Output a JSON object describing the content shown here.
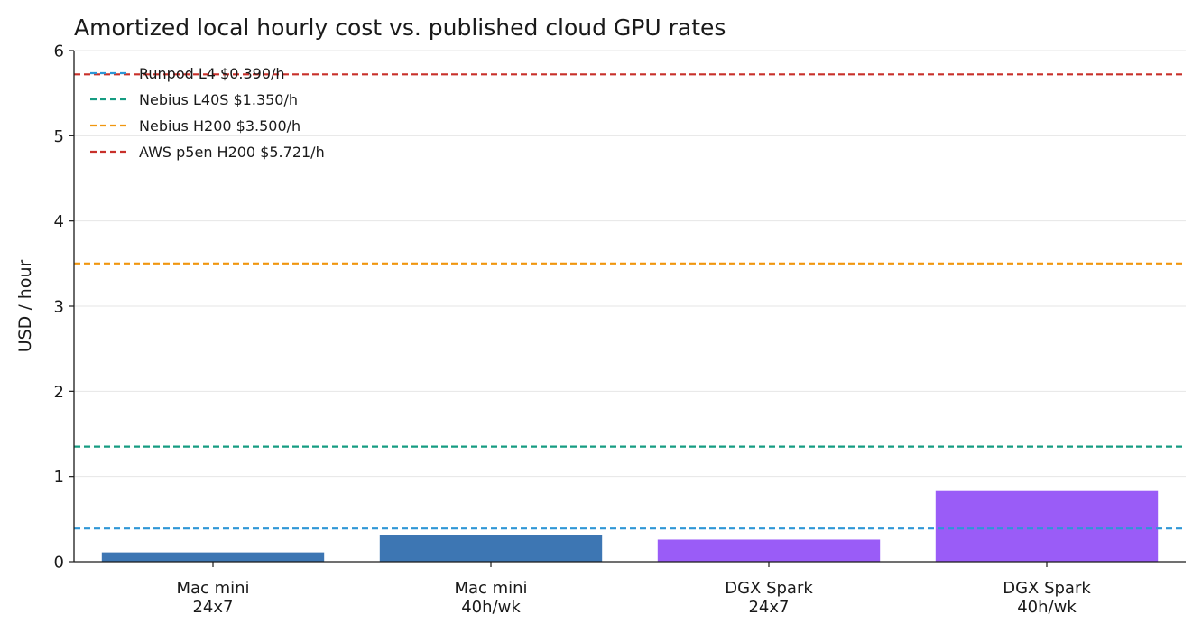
{
  "chart_data": {
    "type": "bar",
    "title": "Amortized local hourly cost vs. published cloud GPU rates",
    "xlabel": "",
    "ylabel": "USD / hour",
    "ylim": [
      0,
      6
    ],
    "yticks": [
      0,
      1,
      2,
      3,
      4,
      5,
      6
    ],
    "grid": "horizontal",
    "legend_position": "top-left",
    "categories": [
      [
        "Mac mini",
        "24x7"
      ],
      [
        "Mac mini",
        "40h/wk"
      ],
      [
        "DGX Spark",
        "24x7"
      ],
      [
        "DGX Spark",
        "40h/wk"
      ]
    ],
    "values": [
      0.11,
      0.31,
      0.26,
      0.83
    ],
    "bar_colors": [
      "#3d76b3",
      "#3d76b3",
      "#9a5cf7",
      "#9a5cf7"
    ],
    "reference_lines": [
      {
        "label": "Runpod L4 $0.390/h",
        "value": 0.39,
        "color": "#2e96d6"
      },
      {
        "label": "Nebius L40S $1.350/h",
        "value": 1.35,
        "color": "#169c82"
      },
      {
        "label": "Nebius H200 $3.500/h",
        "value": 3.5,
        "color": "#f0960f"
      },
      {
        "label": "AWS p5en H200 $5.721/h",
        "value": 5.721,
        "color": "#c8302a"
      }
    ]
  }
}
